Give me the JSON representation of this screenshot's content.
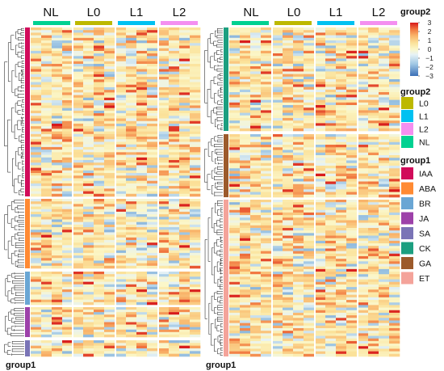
{
  "chart_data": {
    "type": "heatmap",
    "panels": [
      {
        "columns": [
          "NL",
          "L0",
          "L1",
          "L2"
        ],
        "row_groups": [
          "IAA",
          "ABA",
          "BR",
          "JA",
          "SA"
        ],
        "ylabel": "group1"
      },
      {
        "columns": [
          "NL",
          "L0",
          "L1",
          "L2"
        ],
        "row_groups": [
          "CK",
          "GA",
          "ET"
        ],
        "ylabel": "group1"
      }
    ],
    "colorscale": {
      "title": "group2",
      "ticks": [
        "3",
        "2",
        "1",
        "0",
        "−1",
        "−2",
        "−3"
      ],
      "range": [
        -3,
        3
      ],
      "low": "#3b6fb6",
      "mid": "#fbf7c9",
      "high": "#d7191c"
    },
    "legends": {
      "group2": {
        "title": "group2",
        "entries": [
          {
            "label": "L0",
            "color": "#bdb800"
          },
          {
            "label": "L1",
            "color": "#00c1f1"
          },
          {
            "label": "L2",
            "color": "#f48ff0"
          },
          {
            "label": "NL",
            "color": "#00d191"
          }
        ]
      },
      "group1": {
        "title": "group1",
        "entries": [
          {
            "label": "IAA",
            "color": "#d10b5a"
          },
          {
            "label": "ABA",
            "color": "#ff8a33"
          },
          {
            "label": "BR",
            "color": "#6aa6d4"
          },
          {
            "label": "JA",
            "color": "#9d41a9"
          },
          {
            "label": "SA",
            "color": "#7a74b6"
          },
          {
            "label": "CK",
            "color": "#1c9f80"
          },
          {
            "label": "GA",
            "color": "#9c5a2b"
          },
          {
            "label": "ET",
            "color": "#f4a39a"
          }
        ]
      }
    }
  }
}
